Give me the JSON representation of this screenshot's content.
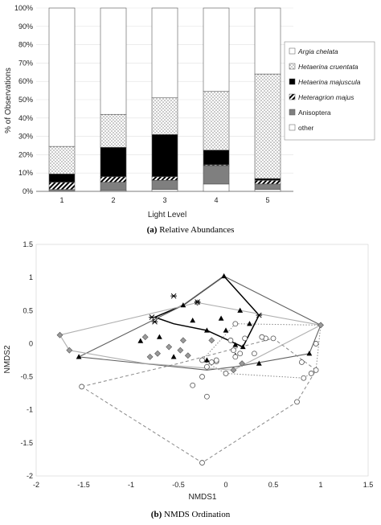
{
  "chart_data": [
    {
      "type": "bar",
      "stacked": true,
      "categories": [
        "1",
        "2",
        "3",
        "4",
        "5"
      ],
      "ylabel": "% of Observations",
      "xlabel": "Light Level",
      "ylim": [
        0,
        100
      ],
      "yticks": [
        "0%",
        "10%",
        "20%",
        "30%",
        "40%",
        "50%",
        "60%",
        "70%",
        "80%",
        "90%",
        "100%"
      ],
      "legend_position": "right",
      "series": [
        {
          "name": "other",
          "values": [
            0,
            0.5,
            1,
            4,
            1
          ],
          "fill": "plain"
        },
        {
          "name": "Anisoptera",
          "values": [
            1,
            4.5,
            5,
            10,
            3
          ],
          "fill": "gray"
        },
        {
          "name": "Heteragrion majus",
          "values": [
            4,
            3,
            2,
            0.5,
            2
          ],
          "fill": "hatch"
        },
        {
          "name": "Hetaerina majuscula",
          "values": [
            4.5,
            16,
            23,
            8,
            1
          ],
          "fill": "black"
        },
        {
          "name": "Hetaerina cruentata",
          "values": [
            15,
            18,
            20,
            32,
            57
          ],
          "fill": "dots"
        },
        {
          "name": "Argia chelata",
          "values": [
            75.5,
            58,
            49,
            45.5,
            36
          ],
          "fill": "plain"
        }
      ],
      "italic_series": [
        "Argia chelata",
        "Hetaerina cruentata",
        "Hetaerina majuscula",
        "Heteragrion majus"
      ],
      "caption_tag": "(a)",
      "caption": "Relative Abundances"
    },
    {
      "type": "scatter",
      "xlabel": "NMDS1",
      "ylabel": "NMDS2",
      "xlim": [
        -2,
        1.5
      ],
      "ylim": [
        -2,
        1.5
      ],
      "xticks": [
        "-2",
        "-1.5",
        "-1",
        "-0.5",
        "0",
        "0.5",
        "1",
        "1.5"
      ],
      "yticks": [
        "1.5",
        "1",
        "0.5",
        "0",
        "-0.5",
        "-1",
        "-1.5",
        "-2"
      ],
      "caption_tag": "(b)",
      "caption": "NMDS Ordination",
      "series": [
        {
          "marker": "diamond",
          "points": [
            [
              -1.75,
              0.13
            ],
            [
              -1.65,
              -0.1
            ],
            [
              -0.85,
              0.1
            ],
            [
              -0.72,
              -0.15
            ],
            [
              -0.8,
              -0.2
            ],
            [
              -0.6,
              -0.05
            ],
            [
              -0.48,
              -0.1
            ],
            [
              -0.45,
              0.05
            ],
            [
              -0.4,
              -0.18
            ],
            [
              -0.3,
              0.62
            ],
            [
              -0.15,
              0.05
            ],
            [
              0.08,
              -0.4
            ],
            [
              0.17,
              -0.3
            ],
            [
              1.0,
              0.28
            ]
          ]
        },
        {
          "marker": "triangle",
          "points": [
            [
              -1.55,
              -0.2
            ],
            [
              -0.9,
              0.04
            ],
            [
              -0.7,
              0.1
            ],
            [
              -0.55,
              -0.2
            ],
            [
              -0.45,
              0.58
            ],
            [
              -0.35,
              0.35
            ],
            [
              -0.2,
              -0.25
            ],
            [
              -0.05,
              0.38
            ],
            [
              0.0,
              0.2
            ],
            [
              0.1,
              -0.02
            ],
            [
              0.1,
              -0.18
            ],
            [
              0.25,
              0.3
            ],
            [
              0.35,
              -0.3
            ],
            [
              0.18,
              -0.05
            ],
            [
              -0.2,
              0.2
            ],
            [
              0.15,
              0.5
            ],
            [
              0.88,
              -0.15
            ],
            [
              -0.02,
              1.02
            ]
          ]
        },
        {
          "marker": "star",
          "points": [
            [
              -0.55,
              0.72
            ],
            [
              -0.75,
              0.33
            ],
            [
              -0.78,
              0.4
            ],
            [
              -0.3,
              0.63
            ],
            [
              0.35,
              0.43
            ]
          ]
        },
        {
          "marker": "circle",
          "points": [
            [
              -1.52,
              -0.65
            ],
            [
              -0.25,
              -0.25
            ],
            [
              -0.35,
              -0.63
            ],
            [
              -0.25,
              -0.5
            ],
            [
              -0.2,
              -0.8
            ],
            [
              -0.2,
              -0.35
            ],
            [
              -0.15,
              -0.28
            ],
            [
              -0.1,
              -0.27
            ],
            [
              -0.1,
              -0.25
            ],
            [
              0.1,
              0.3
            ],
            [
              0.05,
              0.05
            ],
            [
              0.08,
              -0.1
            ],
            [
              0.1,
              -0.2
            ],
            [
              0.15,
              -0.15
            ],
            [
              0.2,
              0.08
            ],
            [
              0.3,
              -0.15
            ],
            [
              0.5,
              0.08
            ],
            [
              0.42,
              0.08
            ],
            [
              0.8,
              -0.28
            ],
            [
              0.82,
              -0.52
            ],
            [
              0.9,
              -0.45
            ],
            [
              0.95,
              -0.4
            ],
            [
              0.75,
              -0.88
            ],
            [
              -0.25,
              -1.8
            ],
            [
              0.0,
              -0.45
            ],
            [
              0.95,
              0.0
            ],
            [
              0.38,
              0.1
            ]
          ]
        }
      ],
      "hulls": [
        {
          "style": "black",
          "points": [
            [
              -0.02,
              1.02
            ],
            [
              0.35,
              0.43
            ],
            [
              0.18,
              -0.05
            ],
            [
              -0.2,
              0.2
            ],
            [
              -0.55,
              0.3
            ],
            [
              -0.75,
              0.4
            ],
            [
              -0.45,
              0.58
            ]
          ]
        },
        {
          "style": "darkgray",
          "points": [
            [
              -1.55,
              -0.2
            ],
            [
              -0.45,
              0.58
            ],
            [
              -0.02,
              1.02
            ],
            [
              1.0,
              0.28
            ],
            [
              0.88,
              -0.15
            ],
            [
              0.1,
              -0.35
            ],
            [
              -0.2,
              -0.4
            ]
          ]
        },
        {
          "style": "lightgray",
          "points": [
            [
              -1.75,
              0.13
            ],
            [
              -0.3,
              0.62
            ],
            [
              1.0,
              0.28
            ],
            [
              0.08,
              -0.4
            ],
            [
              -0.85,
              -0.3
            ],
            [
              -1.65,
              -0.1
            ]
          ]
        },
        {
          "style": "dotted",
          "points": [
            [
              0.1,
              0.3
            ],
            [
              1.0,
              0.28
            ],
            [
              0.95,
              -0.4
            ],
            [
              0.82,
              -0.52
            ],
            [
              0.0,
              -0.45
            ],
            [
              -0.25,
              -0.25
            ]
          ]
        },
        {
          "style": "dashed",
          "points": [
            [
              -1.52,
              -0.65
            ],
            [
              -0.5,
              -0.3
            ],
            [
              0.5,
              0.08
            ],
            [
              0.95,
              -0.4
            ],
            [
              0.75,
              -0.88
            ],
            [
              -0.25,
              -1.8
            ]
          ]
        }
      ]
    }
  ]
}
